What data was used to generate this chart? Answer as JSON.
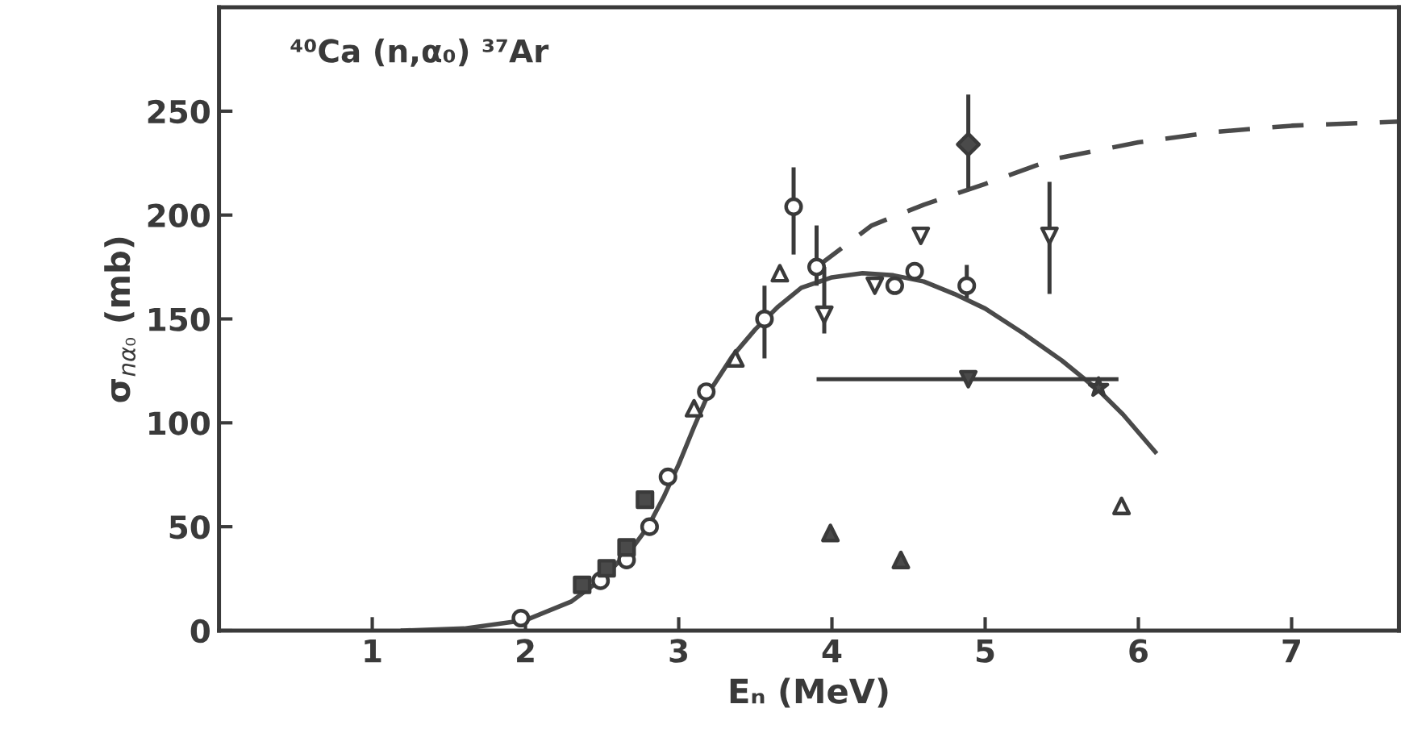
{
  "chart_data": {
    "type": "scatter",
    "xlabel": "Eₙ (MeV)",
    "ylabel": "σ$_{nα₀}$ (mb)",
    "annotations": [
      "⁴⁰Ca (n,α₀) ³⁷Ar"
    ],
    "xlim": [
      0,
      7.7
    ],
    "ylim": [
      0,
      300
    ],
    "xticks": [
      1,
      2,
      3,
      4,
      5,
      6,
      7
    ],
    "yticks": [
      0,
      50,
      100,
      150,
      200,
      250
    ],
    "grid": false,
    "legend": false,
    "series": [
      {
        "type": "line",
        "color": "#4a4a4a",
        "line_style": "solid",
        "marker": "none",
        "x": [
          1.2,
          1.6,
          2.0,
          2.3,
          2.5,
          2.7,
          2.8,
          2.9,
          3.0,
          3.1,
          3.2,
          3.35,
          3.5,
          3.65,
          3.8,
          4.0,
          4.2,
          4.4,
          4.6,
          4.8,
          5.0,
          5.25,
          5.5,
          5.75,
          5.9,
          6.11
        ],
        "values": [
          0,
          1,
          5,
          14,
          25,
          40,
          50,
          64,
          80,
          98,
          115,
          132,
          145,
          156,
          165,
          170,
          172,
          171,
          168,
          162,
          155,
          143,
          130,
          115,
          104,
          86
        ]
      },
      {
        "type": "line",
        "color": "#4a4a4a",
        "line_style": "dashed",
        "marker": "none",
        "x": [
          3.9,
          4.26,
          4.6,
          5.0,
          5.45,
          6.0,
          6.5,
          7.0,
          7.7
        ],
        "values": [
          175,
          195,
          205,
          215,
          227,
          235,
          240,
          243,
          245
        ]
      },
      {
        "color": "#ffffff",
        "marker": "circle",
        "x": [
          1.97,
          2.49,
          2.66,
          2.81,
          2.93,
          3.18,
          3.56,
          3.75,
          3.9,
          4.41,
          4.54,
          4.88
        ],
        "values": [
          6,
          24,
          34,
          50,
          74,
          115,
          150,
          204,
          175,
          166,
          173,
          166
        ],
        "errors": [
          null,
          null,
          null,
          null,
          null,
          null,
          [
            131,
            166
          ],
          [
            181,
            223
          ],
          [
            166,
            195
          ],
          null,
          null,
          [
            160,
            176
          ]
        ]
      },
      {
        "color": "#ffffff",
        "marker": "triangle",
        "x": [
          3.1,
          3.37,
          3.66,
          5.89
        ],
        "values": [
          107,
          131,
          172,
          60
        ]
      },
      {
        "color": "#ffffff",
        "marker": "triangle_down",
        "x": [
          3.95,
          4.28,
          4.58,
          5.42
        ],
        "values": [
          152,
          166,
          190,
          190
        ],
        "errors": [
          [
            143,
            175
          ],
          null,
          null,
          [
            162,
            216
          ]
        ]
      },
      {
        "color": "#4a4a4a",
        "marker": "square",
        "x": [
          2.37,
          2.53,
          2.66,
          2.78
        ],
        "values": [
          22,
          30,
          40,
          63
        ]
      },
      {
        "color": "#4a4a4a",
        "marker": "triangle",
        "x": [
          3.99,
          4.45
        ],
        "values": [
          47,
          34
        ]
      },
      {
        "color": "#4a4a4a",
        "marker": "diamond",
        "x": [
          4.89
        ],
        "values": [
          234
        ],
        "errors": [
          [
            213,
            258
          ]
        ]
      },
      {
        "color": "#4a4a4a",
        "marker": "triangle_down",
        "x": [
          4.89
        ],
        "values": [
          121
        ],
        "xerrors": [
          [
            3.9,
            5.87
          ]
        ]
      },
      {
        "color": "#4a4a4a",
        "marker": "star",
        "x": [
          5.74
        ],
        "values": [
          117
        ]
      }
    ]
  }
}
